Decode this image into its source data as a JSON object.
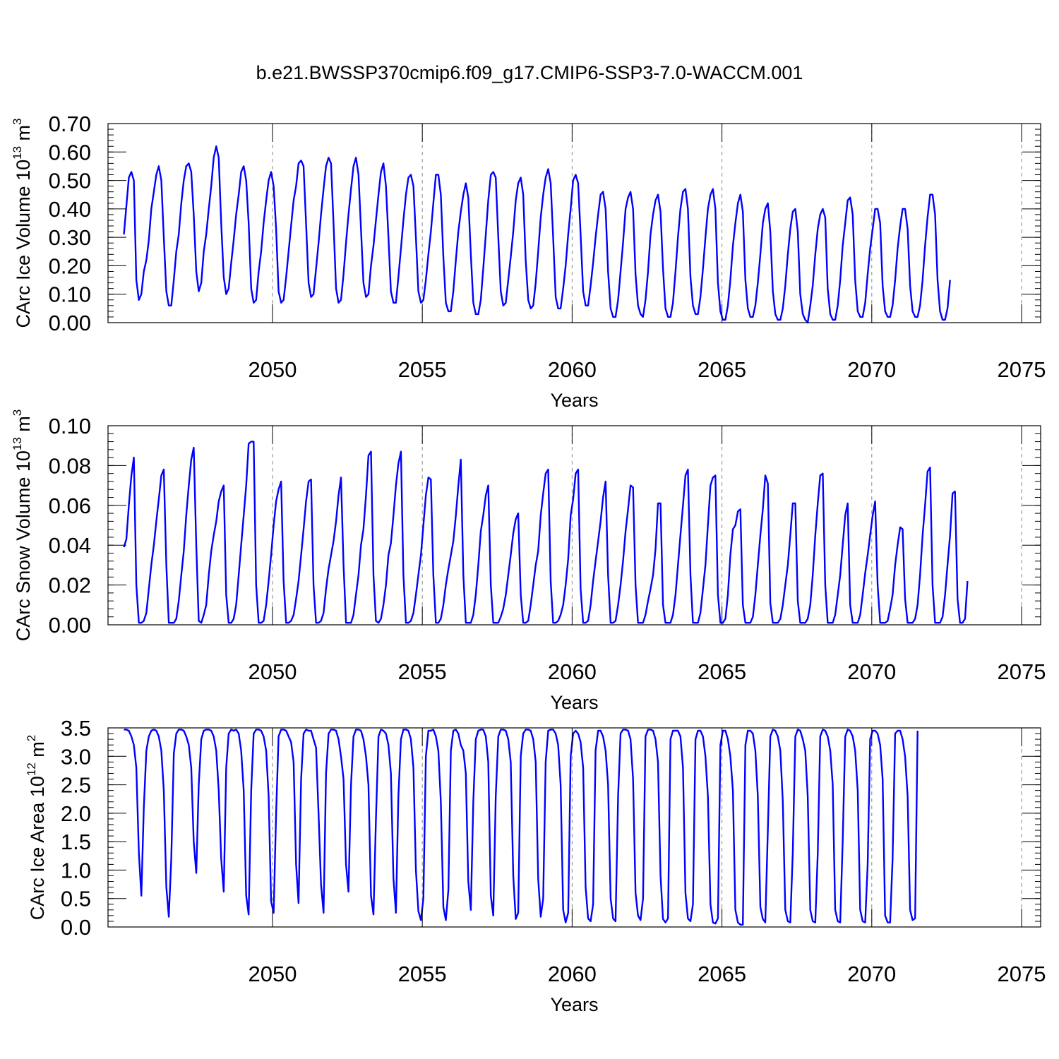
{
  "title": "b.e21.BWSSP370cmip6.f09_g17.CMIP6-SSP3-7.0-WACCM.001",
  "colors": {
    "series": "#0000ff",
    "axis": "#000000",
    "grid": "#888888"
  },
  "chart_data": [
    {
      "type": "line",
      "ylabel_main": "CArc Ice Volume 10",
      "ylabel_exp": "13",
      "ylabel_unit": " m",
      "ylabel_unit_exp": "3",
      "xlabel": "Years",
      "xlim": [
        2045.1,
        2075.0
      ],
      "ylim": [
        0.0,
        0.7
      ],
      "yticks": [
        0.0,
        0.1,
        0.2,
        0.3,
        0.4,
        0.5,
        0.6,
        0.7
      ],
      "ytick_labels": [
        "0.00",
        "0.10",
        "0.20",
        "0.30",
        "0.40",
        "0.50",
        "0.60",
        "0.70"
      ],
      "yminor_step": 0.02,
      "xticks": [
        2050,
        2055,
        2060,
        2065,
        2070,
        2075
      ],
      "xtick_labels": [
        "2050",
        "2055",
        "2060",
        "2065",
        "2070",
        "2075"
      ],
      "grid": "vertical dashed at major x ticks",
      "start_year": 2045.04,
      "step_years": 0.0833,
      "values": [
        0.31,
        0.41,
        0.51,
        0.53,
        0.5,
        0.15,
        0.08,
        0.1,
        0.18,
        0.22,
        0.29,
        0.4,
        0.46,
        0.52,
        0.55,
        0.5,
        0.3,
        0.11,
        0.06,
        0.06,
        0.15,
        0.25,
        0.31,
        0.42,
        0.5,
        0.55,
        0.56,
        0.53,
        0.38,
        0.18,
        0.11,
        0.14,
        0.25,
        0.31,
        0.4,
        0.48,
        0.58,
        0.62,
        0.58,
        0.35,
        0.16,
        0.1,
        0.12,
        0.21,
        0.29,
        0.38,
        0.45,
        0.53,
        0.55,
        0.5,
        0.35,
        0.12,
        0.07,
        0.08,
        0.18,
        0.25,
        0.35,
        0.43,
        0.5,
        0.53,
        0.48,
        0.33,
        0.11,
        0.07,
        0.08,
        0.16,
        0.25,
        0.34,
        0.43,
        0.48,
        0.56,
        0.57,
        0.55,
        0.35,
        0.14,
        0.09,
        0.1,
        0.19,
        0.28,
        0.38,
        0.47,
        0.55,
        0.58,
        0.56,
        0.35,
        0.12,
        0.07,
        0.08,
        0.17,
        0.28,
        0.38,
        0.47,
        0.55,
        0.58,
        0.52,
        0.33,
        0.14,
        0.09,
        0.1,
        0.2,
        0.27,
        0.36,
        0.45,
        0.53,
        0.56,
        0.48,
        0.3,
        0.11,
        0.07,
        0.07,
        0.16,
        0.26,
        0.36,
        0.45,
        0.51,
        0.52,
        0.48,
        0.3,
        0.11,
        0.07,
        0.08,
        0.15,
        0.24,
        0.32,
        0.42,
        0.52,
        0.52,
        0.45,
        0.23,
        0.07,
        0.04,
        0.04,
        0.11,
        0.22,
        0.32,
        0.39,
        0.45,
        0.49,
        0.44,
        0.24,
        0.07,
        0.03,
        0.03,
        0.08,
        0.19,
        0.31,
        0.43,
        0.52,
        0.53,
        0.51,
        0.3,
        0.11,
        0.06,
        0.07,
        0.15,
        0.23,
        0.32,
        0.43,
        0.49,
        0.51,
        0.45,
        0.22,
        0.08,
        0.05,
        0.06,
        0.14,
        0.25,
        0.37,
        0.45,
        0.51,
        0.54,
        0.49,
        0.3,
        0.09,
        0.05,
        0.05,
        0.12,
        0.2,
        0.31,
        0.4,
        0.5,
        0.52,
        0.49,
        0.31,
        0.11,
        0.06,
        0.06,
        0.13,
        0.21,
        0.3,
        0.38,
        0.45,
        0.46,
        0.4,
        0.18,
        0.05,
        0.02,
        0.02,
        0.08,
        0.18,
        0.28,
        0.4,
        0.44,
        0.46,
        0.4,
        0.17,
        0.06,
        0.03,
        0.02,
        0.08,
        0.18,
        0.31,
        0.38,
        0.43,
        0.45,
        0.39,
        0.19,
        0.05,
        0.02,
        0.02,
        0.07,
        0.18,
        0.3,
        0.4,
        0.46,
        0.47,
        0.4,
        0.16,
        0.06,
        0.03,
        0.03,
        0.09,
        0.19,
        0.3,
        0.4,
        0.45,
        0.47,
        0.4,
        0.14,
        0.04,
        0.01,
        0.01,
        0.06,
        0.15,
        0.27,
        0.35,
        0.42,
        0.45,
        0.39,
        0.15,
        0.05,
        0.02,
        0.02,
        0.06,
        0.14,
        0.24,
        0.35,
        0.4,
        0.42,
        0.32,
        0.11,
        0.03,
        0.01,
        0.01,
        0.05,
        0.13,
        0.24,
        0.33,
        0.39,
        0.4,
        0.32,
        0.1,
        0.03,
        0.01,
        0.0,
        0.06,
        0.13,
        0.24,
        0.33,
        0.38,
        0.4,
        0.37,
        0.12,
        0.03,
        0.01,
        0.01,
        0.06,
        0.15,
        0.27,
        0.35,
        0.43,
        0.44,
        0.38,
        0.15,
        0.04,
        0.02,
        0.02,
        0.07,
        0.17,
        0.26,
        0.33,
        0.4,
        0.4,
        0.35,
        0.13,
        0.04,
        0.02,
        0.02,
        0.06,
        0.15,
        0.26,
        0.34,
        0.4,
        0.4,
        0.33,
        0.13,
        0.04,
        0.02,
        0.02,
        0.06,
        0.15,
        0.27,
        0.37,
        0.45,
        0.45,
        0.38,
        0.15,
        0.04,
        0.01,
        0.01,
        0.05,
        0.15
      ]
    },
    {
      "type": "line",
      "ylabel_main": "CArc Snow Volume 10",
      "ylabel_exp": "13",
      "ylabel_unit": " m",
      "ylabel_unit_exp": "3",
      "xlabel": "Years",
      "xlim": [
        2045.1,
        2075.0
      ],
      "ylim": [
        0.0,
        0.1
      ],
      "yticks": [
        0.0,
        0.02,
        0.04,
        0.06,
        0.08,
        0.1
      ],
      "ytick_labels": [
        "0.00",
        "0.02",
        "0.04",
        "0.06",
        "0.08",
        "0.10"
      ],
      "yminor_step": 0.004,
      "xticks": [
        2050,
        2055,
        2060,
        2065,
        2070,
        2075
      ],
      "xtick_labels": [
        "2050",
        "2055",
        "2060",
        "2065",
        "2070",
        "2075"
      ],
      "grid": "vertical dashed at major x ticks",
      "start_year": 2045.04,
      "step_years": 0.0833,
      "values": [
        0.039,
        0.043,
        0.06,
        0.075,
        0.084,
        0.02,
        0.001,
        0.001,
        0.002,
        0.006,
        0.018,
        0.03,
        0.04,
        0.052,
        0.063,
        0.075,
        0.078,
        0.03,
        0.001,
        0.001,
        0.001,
        0.003,
        0.012,
        0.025,
        0.037,
        0.055,
        0.07,
        0.083,
        0.089,
        0.04,
        0.002,
        0.001,
        0.005,
        0.01,
        0.025,
        0.037,
        0.045,
        0.052,
        0.062,
        0.067,
        0.07,
        0.015,
        0.001,
        0.001,
        0.003,
        0.01,
        0.025,
        0.04,
        0.055,
        0.07,
        0.091,
        0.092,
        0.092,
        0.02,
        0.001,
        0.001,
        0.002,
        0.01,
        0.022,
        0.035,
        0.05,
        0.062,
        0.068,
        0.072,
        0.022,
        0.001,
        0.001,
        0.002,
        0.005,
        0.013,
        0.022,
        0.035,
        0.048,
        0.062,
        0.072,
        0.073,
        0.02,
        0.001,
        0.001,
        0.002,
        0.006,
        0.018,
        0.028,
        0.035,
        0.042,
        0.052,
        0.065,
        0.074,
        0.03,
        0.001,
        0.001,
        0.001,
        0.005,
        0.015,
        0.025,
        0.04,
        0.048,
        0.065,
        0.085,
        0.087,
        0.025,
        0.002,
        0.001,
        0.003,
        0.01,
        0.02,
        0.035,
        0.041,
        0.055,
        0.07,
        0.081,
        0.087,
        0.025,
        0.001,
        0.001,
        0.002,
        0.006,
        0.015,
        0.025,
        0.035,
        0.05,
        0.065,
        0.074,
        0.073,
        0.025,
        0.001,
        0.001,
        0.003,
        0.01,
        0.02,
        0.028,
        0.035,
        0.042,
        0.055,
        0.07,
        0.083,
        0.025,
        0.001,
        0.001,
        0.001,
        0.005,
        0.015,
        0.03,
        0.047,
        0.055,
        0.065,
        0.07,
        0.02,
        0.001,
        0.001,
        0.001,
        0.004,
        0.008,
        0.015,
        0.025,
        0.035,
        0.046,
        0.053,
        0.056,
        0.015,
        0.001,
        0.001,
        0.002,
        0.01,
        0.02,
        0.03,
        0.037,
        0.055,
        0.066,
        0.076,
        0.078,
        0.022,
        0.001,
        0.001,
        0.002,
        0.005,
        0.01,
        0.02,
        0.033,
        0.055,
        0.063,
        0.076,
        0.078,
        0.018,
        0.001,
        0.001,
        0.002,
        0.01,
        0.022,
        0.032,
        0.042,
        0.052,
        0.064,
        0.072,
        0.025,
        0.001,
        0.001,
        0.002,
        0.01,
        0.02,
        0.032,
        0.047,
        0.058,
        0.07,
        0.069,
        0.02,
        0.001,
        0.001,
        0.001,
        0.005,
        0.012,
        0.018,
        0.025,
        0.038,
        0.061,
        0.061,
        0.01,
        0.001,
        0.001,
        0.001,
        0.005,
        0.015,
        0.03,
        0.045,
        0.06,
        0.075,
        0.078,
        0.025,
        0.001,
        0.001,
        0.001,
        0.006,
        0.018,
        0.03,
        0.05,
        0.07,
        0.074,
        0.075,
        0.015,
        0.001,
        0.001,
        0.003,
        0.015,
        0.035,
        0.048,
        0.05,
        0.057,
        0.058,
        0.01,
        0.001,
        0.001,
        0.001,
        0.004,
        0.015,
        0.03,
        0.045,
        0.058,
        0.075,
        0.071,
        0.011,
        0.001,
        0.001,
        0.001,
        0.003,
        0.01,
        0.02,
        0.03,
        0.045,
        0.061,
        0.061,
        0.012,
        0.001,
        0.001,
        0.001,
        0.003,
        0.01,
        0.025,
        0.045,
        0.061,
        0.075,
        0.076,
        0.02,
        0.001,
        0.001,
        0.001,
        0.005,
        0.015,
        0.025,
        0.04,
        0.055,
        0.061,
        0.01,
        0.001,
        0.001,
        0.001,
        0.005,
        0.015,
        0.026,
        0.035,
        0.045,
        0.055,
        0.062,
        0.02,
        0.001,
        0.001,
        0.001,
        0.002,
        0.008,
        0.015,
        0.03,
        0.04,
        0.049,
        0.048,
        0.013,
        0.001,
        0.001,
        0.001,
        0.003,
        0.01,
        0.025,
        0.045,
        0.06,
        0.077,
        0.079,
        0.02,
        0.001,
        0.001,
        0.001,
        0.004,
        0.015,
        0.03,
        0.045,
        0.066,
        0.067,
        0.013,
        0.001,
        0.001,
        0.003,
        0.022
      ]
    },
    {
      "type": "line",
      "ylabel_main": "CArc Ice Area 10",
      "ylabel_exp": "12",
      "ylabel_unit": " m",
      "ylabel_unit_exp": "2",
      "xlabel": "Years",
      "xlim": [
        2045.1,
        2075.0
      ],
      "ylim": [
        0.0,
        3.5
      ],
      "yticks": [
        0.0,
        0.5,
        1.0,
        1.5,
        2.0,
        2.5,
        3.0,
        3.5
      ],
      "ytick_labels": [
        "0.0",
        "0.5",
        "1.0",
        "1.5",
        "2.0",
        "2.5",
        "3.0",
        "3.5"
      ],
      "yminor_step": 0.1,
      "xticks": [
        2050,
        2055,
        2060,
        2065,
        2070,
        2075
      ],
      "xtick_labels": [
        "2050",
        "2055",
        "2060",
        "2065",
        "2070",
        "2075"
      ],
      "grid": "vertical dashed at major x ticks",
      "start_year": 2045.04,
      "step_years": 0.0833,
      "values": [
        3.47,
        3.47,
        3.45,
        3.35,
        3.2,
        2.8,
        1.3,
        0.55,
        2.1,
        3.1,
        3.35,
        3.45,
        3.47,
        3.45,
        3.35,
        3.1,
        2.4,
        0.7,
        0.18,
        1.2,
        3.05,
        3.4,
        3.47,
        3.47,
        3.45,
        3.35,
        3.2,
        2.8,
        1.5,
        0.95,
        2.5,
        3.3,
        3.45,
        3.47,
        3.47,
        3.45,
        3.35,
        3.1,
        2.4,
        1.2,
        0.62,
        2.8,
        3.4,
        3.47,
        3.45,
        3.47,
        3.4,
        3.1,
        2.4,
        0.55,
        0.22,
        2.4,
        3.4,
        3.47,
        3.47,
        3.45,
        3.35,
        3.1,
        2.3,
        0.45,
        0.25,
        2.0,
        3.35,
        3.47,
        3.47,
        3.45,
        3.35,
        3.25,
        2.9,
        1.1,
        0.42,
        2.6,
        3.4,
        3.47,
        3.45,
        3.45,
        3.3,
        3.15,
        2.0,
        0.75,
        0.25,
        2.7,
        3.4,
        3.47,
        3.47,
        3.45,
        3.3,
        3.0,
        2.6,
        1.1,
        0.62,
        2.5,
        3.35,
        3.47,
        3.47,
        3.45,
        3.3,
        3.0,
        2.5,
        0.55,
        0.22,
        1.9,
        3.35,
        3.47,
        3.45,
        3.4,
        3.2,
        2.7,
        0.85,
        0.25,
        2.3,
        3.3,
        3.47,
        3.47,
        3.45,
        3.3,
        2.8,
        1.0,
        0.28,
        0.12,
        0.5,
        3.0,
        3.45,
        3.45,
        3.47,
        3.35,
        3.1,
        2.2,
        0.35,
        0.12,
        0.65,
        3.1,
        3.45,
        3.47,
        3.4,
        3.2,
        3.1,
        2.7,
        0.8,
        0.3,
        2.2,
        3.3,
        3.45,
        3.47,
        3.47,
        3.35,
        2.9,
        0.55,
        0.2,
        2.3,
        3.35,
        3.47,
        3.47,
        3.45,
        3.3,
        2.9,
        0.9,
        0.14,
        0.25,
        3.0,
        3.4,
        3.47,
        3.47,
        3.45,
        3.3,
        2.9,
        0.85,
        0.18,
        0.5,
        2.9,
        3.45,
        3.47,
        3.47,
        3.4,
        3.2,
        2.5,
        0.3,
        0.08,
        0.25,
        3.0,
        3.4,
        3.45,
        3.4,
        3.25,
        2.8,
        0.7,
        0.15,
        0.1,
        0.4,
        3.1,
        3.45,
        3.45,
        3.35,
        3.1,
        2.5,
        0.5,
        0.15,
        0.1,
        2.3,
        3.4,
        3.47,
        3.47,
        3.45,
        3.3,
        2.6,
        0.6,
        0.2,
        0.12,
        0.5,
        3.35,
        3.47,
        3.47,
        3.45,
        3.3,
        2.9,
        0.9,
        0.14,
        0.08,
        0.15,
        3.3,
        3.45,
        3.45,
        3.45,
        3.35,
        2.8,
        0.6,
        0.15,
        0.1,
        0.4,
        3.3,
        3.45,
        3.45,
        3.35,
        3.0,
        2.3,
        0.4,
        0.08,
        0.06,
        0.15,
        3.2,
        3.45,
        3.45,
        3.3,
        3.0,
        2.4,
        0.3,
        0.08,
        0.04,
        0.04,
        3.2,
        3.45,
        3.45,
        3.4,
        3.1,
        2.3,
        0.35,
        0.14,
        0.08,
        1.7,
        3.35,
        3.47,
        3.45,
        3.35,
        3.1,
        2.2,
        0.3,
        0.1,
        0.08,
        1.3,
        3.35,
        3.47,
        3.45,
        3.3,
        3.1,
        2.3,
        0.3,
        0.1,
        0.08,
        1.3,
        3.35,
        3.47,
        3.45,
        3.35,
        3.1,
        2.5,
        0.3,
        0.1,
        0.08,
        1.5,
        3.35,
        3.47,
        3.45,
        3.35,
        3.1,
        2.4,
        0.3,
        0.1,
        0.08,
        1.1,
        3.3,
        3.45,
        3.45,
        3.4,
        3.2,
        2.6,
        0.2,
        0.08,
        0.08,
        1.2,
        3.4,
        3.45,
        3.45,
        3.3,
        3.0,
        2.3,
        0.3,
        0.12,
        0.15,
        3.45
      ]
    }
  ]
}
